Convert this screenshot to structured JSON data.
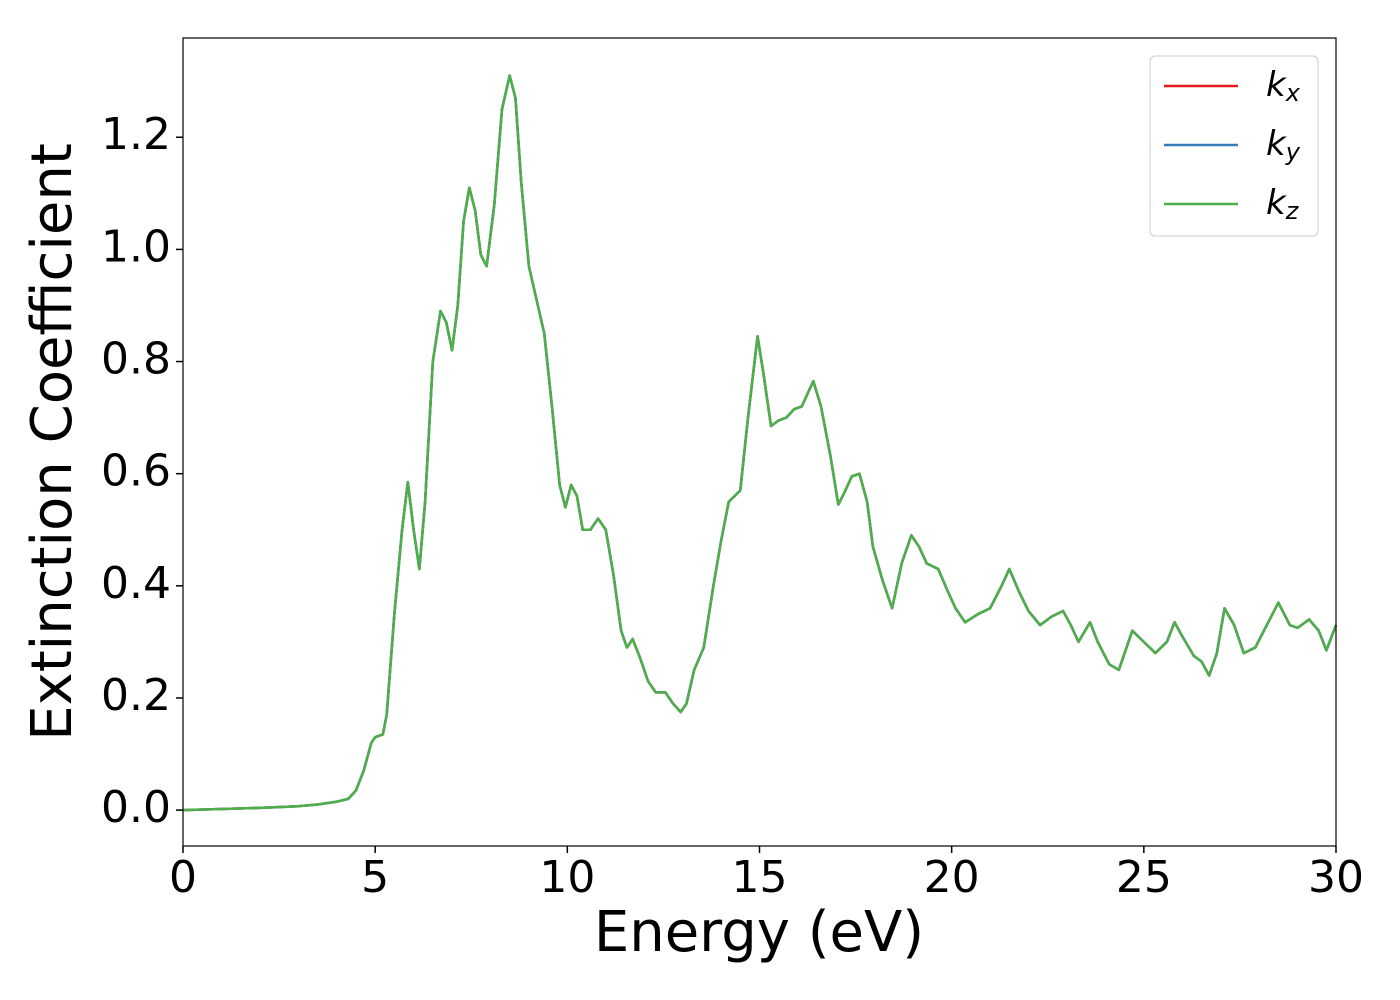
{
  "chart_data": {
    "type": "line",
    "xlabel": "Energy (eV)",
    "ylabel": "Extinction Coefficient",
    "x": [
      0,
      1,
      2,
      3,
      3.5,
      4,
      4.3,
      4.5,
      4.7,
      4.9,
      5.0,
      5.2,
      5.3,
      5.5,
      5.7,
      5.85,
      6.0,
      6.15,
      6.3,
      6.5,
      6.7,
      6.85,
      7.0,
      7.15,
      7.3,
      7.45,
      7.6,
      7.75,
      7.9,
      8.1,
      8.3,
      8.5,
      8.65,
      8.8,
      9.0,
      9.2,
      9.4,
      9.6,
      9.8,
      9.95,
      10.1,
      10.25,
      10.4,
      10.6,
      10.8,
      11.0,
      11.2,
      11.4,
      11.55,
      11.7,
      11.9,
      12.1,
      12.3,
      12.55,
      12.75,
      12.95,
      13.1,
      13.3,
      13.55,
      13.8,
      14.0,
      14.2,
      14.35,
      14.5,
      14.7,
      14.95,
      15.1,
      15.3,
      15.5,
      15.7,
      15.9,
      16.1,
      16.4,
      16.6,
      16.85,
      17.05,
      17.2,
      17.4,
      17.6,
      17.8,
      17.95,
      18.2,
      18.45,
      18.7,
      18.95,
      19.15,
      19.35,
      19.65,
      19.9,
      20.1,
      20.35,
      20.7,
      21.0,
      21.3,
      21.5,
      21.75,
      22.0,
      22.3,
      22.6,
      22.9,
      23.1,
      23.3,
      23.6,
      23.8,
      24.1,
      24.35,
      24.7,
      25.0,
      25.3,
      25.6,
      25.8,
      26.0,
      26.3,
      26.5,
      26.7,
      26.9,
      27.1,
      27.35,
      27.6,
      27.9,
      28.2,
      28.5,
      28.8,
      29.0,
      29.3,
      29.55,
      29.75,
      30.0
    ],
    "series": [
      {
        "name": "kx",
        "color": "#e41a1c",
        "values": [
          0.0,
          0.002,
          0.004,
          0.007,
          0.01,
          0.015,
          0.02,
          0.035,
          0.07,
          0.12,
          0.13,
          0.135,
          0.17,
          0.35,
          0.5,
          0.585,
          0.5,
          0.43,
          0.55,
          0.8,
          0.89,
          0.87,
          0.82,
          0.9,
          1.05,
          1.11,
          1.07,
          0.99,
          0.97,
          1.08,
          1.25,
          1.31,
          1.27,
          1.12,
          0.97,
          0.91,
          0.85,
          0.72,
          0.58,
          0.54,
          0.58,
          0.56,
          0.5,
          0.5,
          0.52,
          0.5,
          0.42,
          0.32,
          0.29,
          0.305,
          0.27,
          0.23,
          0.21,
          0.21,
          0.19,
          0.175,
          0.19,
          0.25,
          0.29,
          0.4,
          0.48,
          0.55,
          0.56,
          0.57,
          0.7,
          0.845,
          0.78,
          0.685,
          0.695,
          0.7,
          0.715,
          0.72,
          0.765,
          0.72,
          0.63,
          0.545,
          0.565,
          0.595,
          0.6,
          0.55,
          0.47,
          0.41,
          0.36,
          0.44,
          0.49,
          0.47,
          0.44,
          0.43,
          0.39,
          0.36,
          0.335,
          0.35,
          0.36,
          0.4,
          0.43,
          0.39,
          0.355,
          0.33,
          0.345,
          0.355,
          0.33,
          0.3,
          0.335,
          0.3,
          0.26,
          0.25,
          0.32,
          0.3,
          0.28,
          0.3,
          0.335,
          0.31,
          0.275,
          0.265,
          0.24,
          0.28,
          0.36,
          0.33,
          0.28,
          0.29,
          0.33,
          0.37,
          0.33,
          0.325,
          0.34,
          0.32,
          0.285,
          0.33
        ]
      },
      {
        "name": "ky",
        "color": "#377eb8",
        "values": [
          0.0,
          0.002,
          0.004,
          0.007,
          0.01,
          0.015,
          0.02,
          0.035,
          0.07,
          0.12,
          0.13,
          0.135,
          0.17,
          0.35,
          0.5,
          0.585,
          0.5,
          0.43,
          0.55,
          0.8,
          0.89,
          0.87,
          0.82,
          0.9,
          1.05,
          1.11,
          1.07,
          0.99,
          0.97,
          1.08,
          1.25,
          1.31,
          1.27,
          1.12,
          0.97,
          0.91,
          0.85,
          0.72,
          0.58,
          0.54,
          0.58,
          0.56,
          0.5,
          0.5,
          0.52,
          0.5,
          0.42,
          0.32,
          0.29,
          0.305,
          0.27,
          0.23,
          0.21,
          0.21,
          0.19,
          0.175,
          0.19,
          0.25,
          0.29,
          0.4,
          0.48,
          0.55,
          0.56,
          0.57,
          0.7,
          0.845,
          0.78,
          0.685,
          0.695,
          0.7,
          0.715,
          0.72,
          0.765,
          0.72,
          0.63,
          0.545,
          0.565,
          0.595,
          0.6,
          0.55,
          0.47,
          0.41,
          0.36,
          0.44,
          0.49,
          0.47,
          0.44,
          0.43,
          0.39,
          0.36,
          0.335,
          0.35,
          0.36,
          0.4,
          0.43,
          0.39,
          0.355,
          0.33,
          0.345,
          0.355,
          0.33,
          0.3,
          0.335,
          0.3,
          0.26,
          0.25,
          0.32,
          0.3,
          0.28,
          0.3,
          0.335,
          0.31,
          0.275,
          0.265,
          0.24,
          0.28,
          0.36,
          0.33,
          0.28,
          0.29,
          0.33,
          0.37,
          0.33,
          0.325,
          0.34,
          0.32,
          0.285,
          0.33
        ]
      },
      {
        "name": "kz",
        "color": "#4daf4a",
        "values": [
          0.0,
          0.002,
          0.004,
          0.007,
          0.01,
          0.015,
          0.02,
          0.035,
          0.07,
          0.12,
          0.13,
          0.135,
          0.17,
          0.35,
          0.5,
          0.585,
          0.5,
          0.43,
          0.55,
          0.8,
          0.89,
          0.87,
          0.82,
          0.9,
          1.05,
          1.11,
          1.07,
          0.99,
          0.97,
          1.08,
          1.25,
          1.31,
          1.27,
          1.12,
          0.97,
          0.91,
          0.85,
          0.72,
          0.58,
          0.54,
          0.58,
          0.56,
          0.5,
          0.5,
          0.52,
          0.5,
          0.42,
          0.32,
          0.29,
          0.305,
          0.27,
          0.23,
          0.21,
          0.21,
          0.19,
          0.175,
          0.19,
          0.25,
          0.29,
          0.4,
          0.48,
          0.55,
          0.56,
          0.57,
          0.7,
          0.845,
          0.78,
          0.685,
          0.695,
          0.7,
          0.715,
          0.72,
          0.765,
          0.72,
          0.63,
          0.545,
          0.565,
          0.595,
          0.6,
          0.55,
          0.47,
          0.41,
          0.36,
          0.44,
          0.49,
          0.47,
          0.44,
          0.43,
          0.39,
          0.36,
          0.335,
          0.35,
          0.36,
          0.4,
          0.43,
          0.39,
          0.355,
          0.33,
          0.345,
          0.355,
          0.33,
          0.3,
          0.335,
          0.3,
          0.26,
          0.25,
          0.32,
          0.3,
          0.28,
          0.3,
          0.335,
          0.31,
          0.275,
          0.265,
          0.24,
          0.28,
          0.36,
          0.33,
          0.28,
          0.29,
          0.33,
          0.37,
          0.33,
          0.325,
          0.34,
          0.32,
          0.285,
          0.33
        ]
      }
    ],
    "xlim": [
      0,
      30
    ],
    "xticks": [
      0,
      5,
      10,
      15,
      20,
      25,
      30
    ],
    "ylim": [
      -0.064,
      1.377
    ],
    "yticks": [
      {
        "value": 0,
        "label": "0.0"
      },
      0.2,
      0.4,
      0.6,
      0.8,
      {
        "value": 1,
        "label": "1.0"
      },
      1.2
    ],
    "legend": "upper right",
    "grid": false
  }
}
